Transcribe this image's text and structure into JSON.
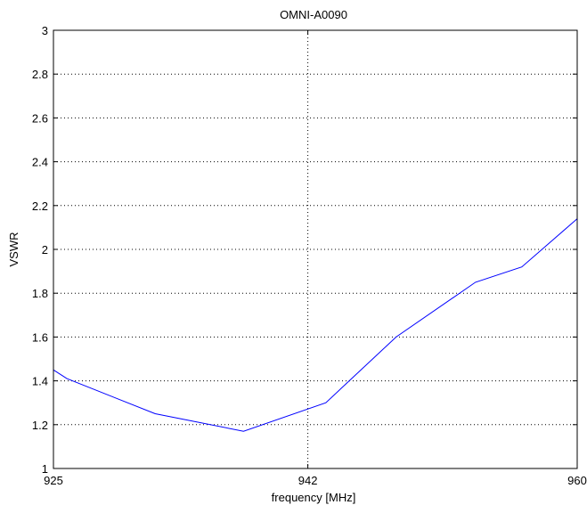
{
  "chart_data": {
    "type": "line",
    "title": "OMNI-A0090",
    "xlabel": "frequency [MHz]",
    "ylabel": "VSWR",
    "xlim": [
      925,
      960
    ],
    "ylim": [
      1,
      3
    ],
    "x_ticks": [
      925,
      942,
      960
    ],
    "y_ticks": [
      1,
      1.2,
      1.4,
      1.6,
      1.8,
      2,
      2.2,
      2.4,
      2.6,
      2.8,
      3
    ],
    "x_tick_labels": [
      "925",
      "942",
      "960"
    ],
    "y_tick_labels": [
      "1",
      "1.2",
      "1.4",
      "1.6",
      "1.8",
      "2",
      "2.2",
      "2.4",
      "2.6",
      "2.8",
      "3"
    ],
    "grid": true,
    "series": [
      {
        "color": "#0000ff",
        "x": [
          925,
          925.9,
          931.8,
          937.7,
          943.2,
          947.9,
          953.2,
          956.3,
          960
        ],
        "y": [
          1.45,
          1.41,
          1.25,
          1.17,
          1.3,
          1.6,
          1.85,
          1.92,
          2.14
        ]
      }
    ]
  }
}
